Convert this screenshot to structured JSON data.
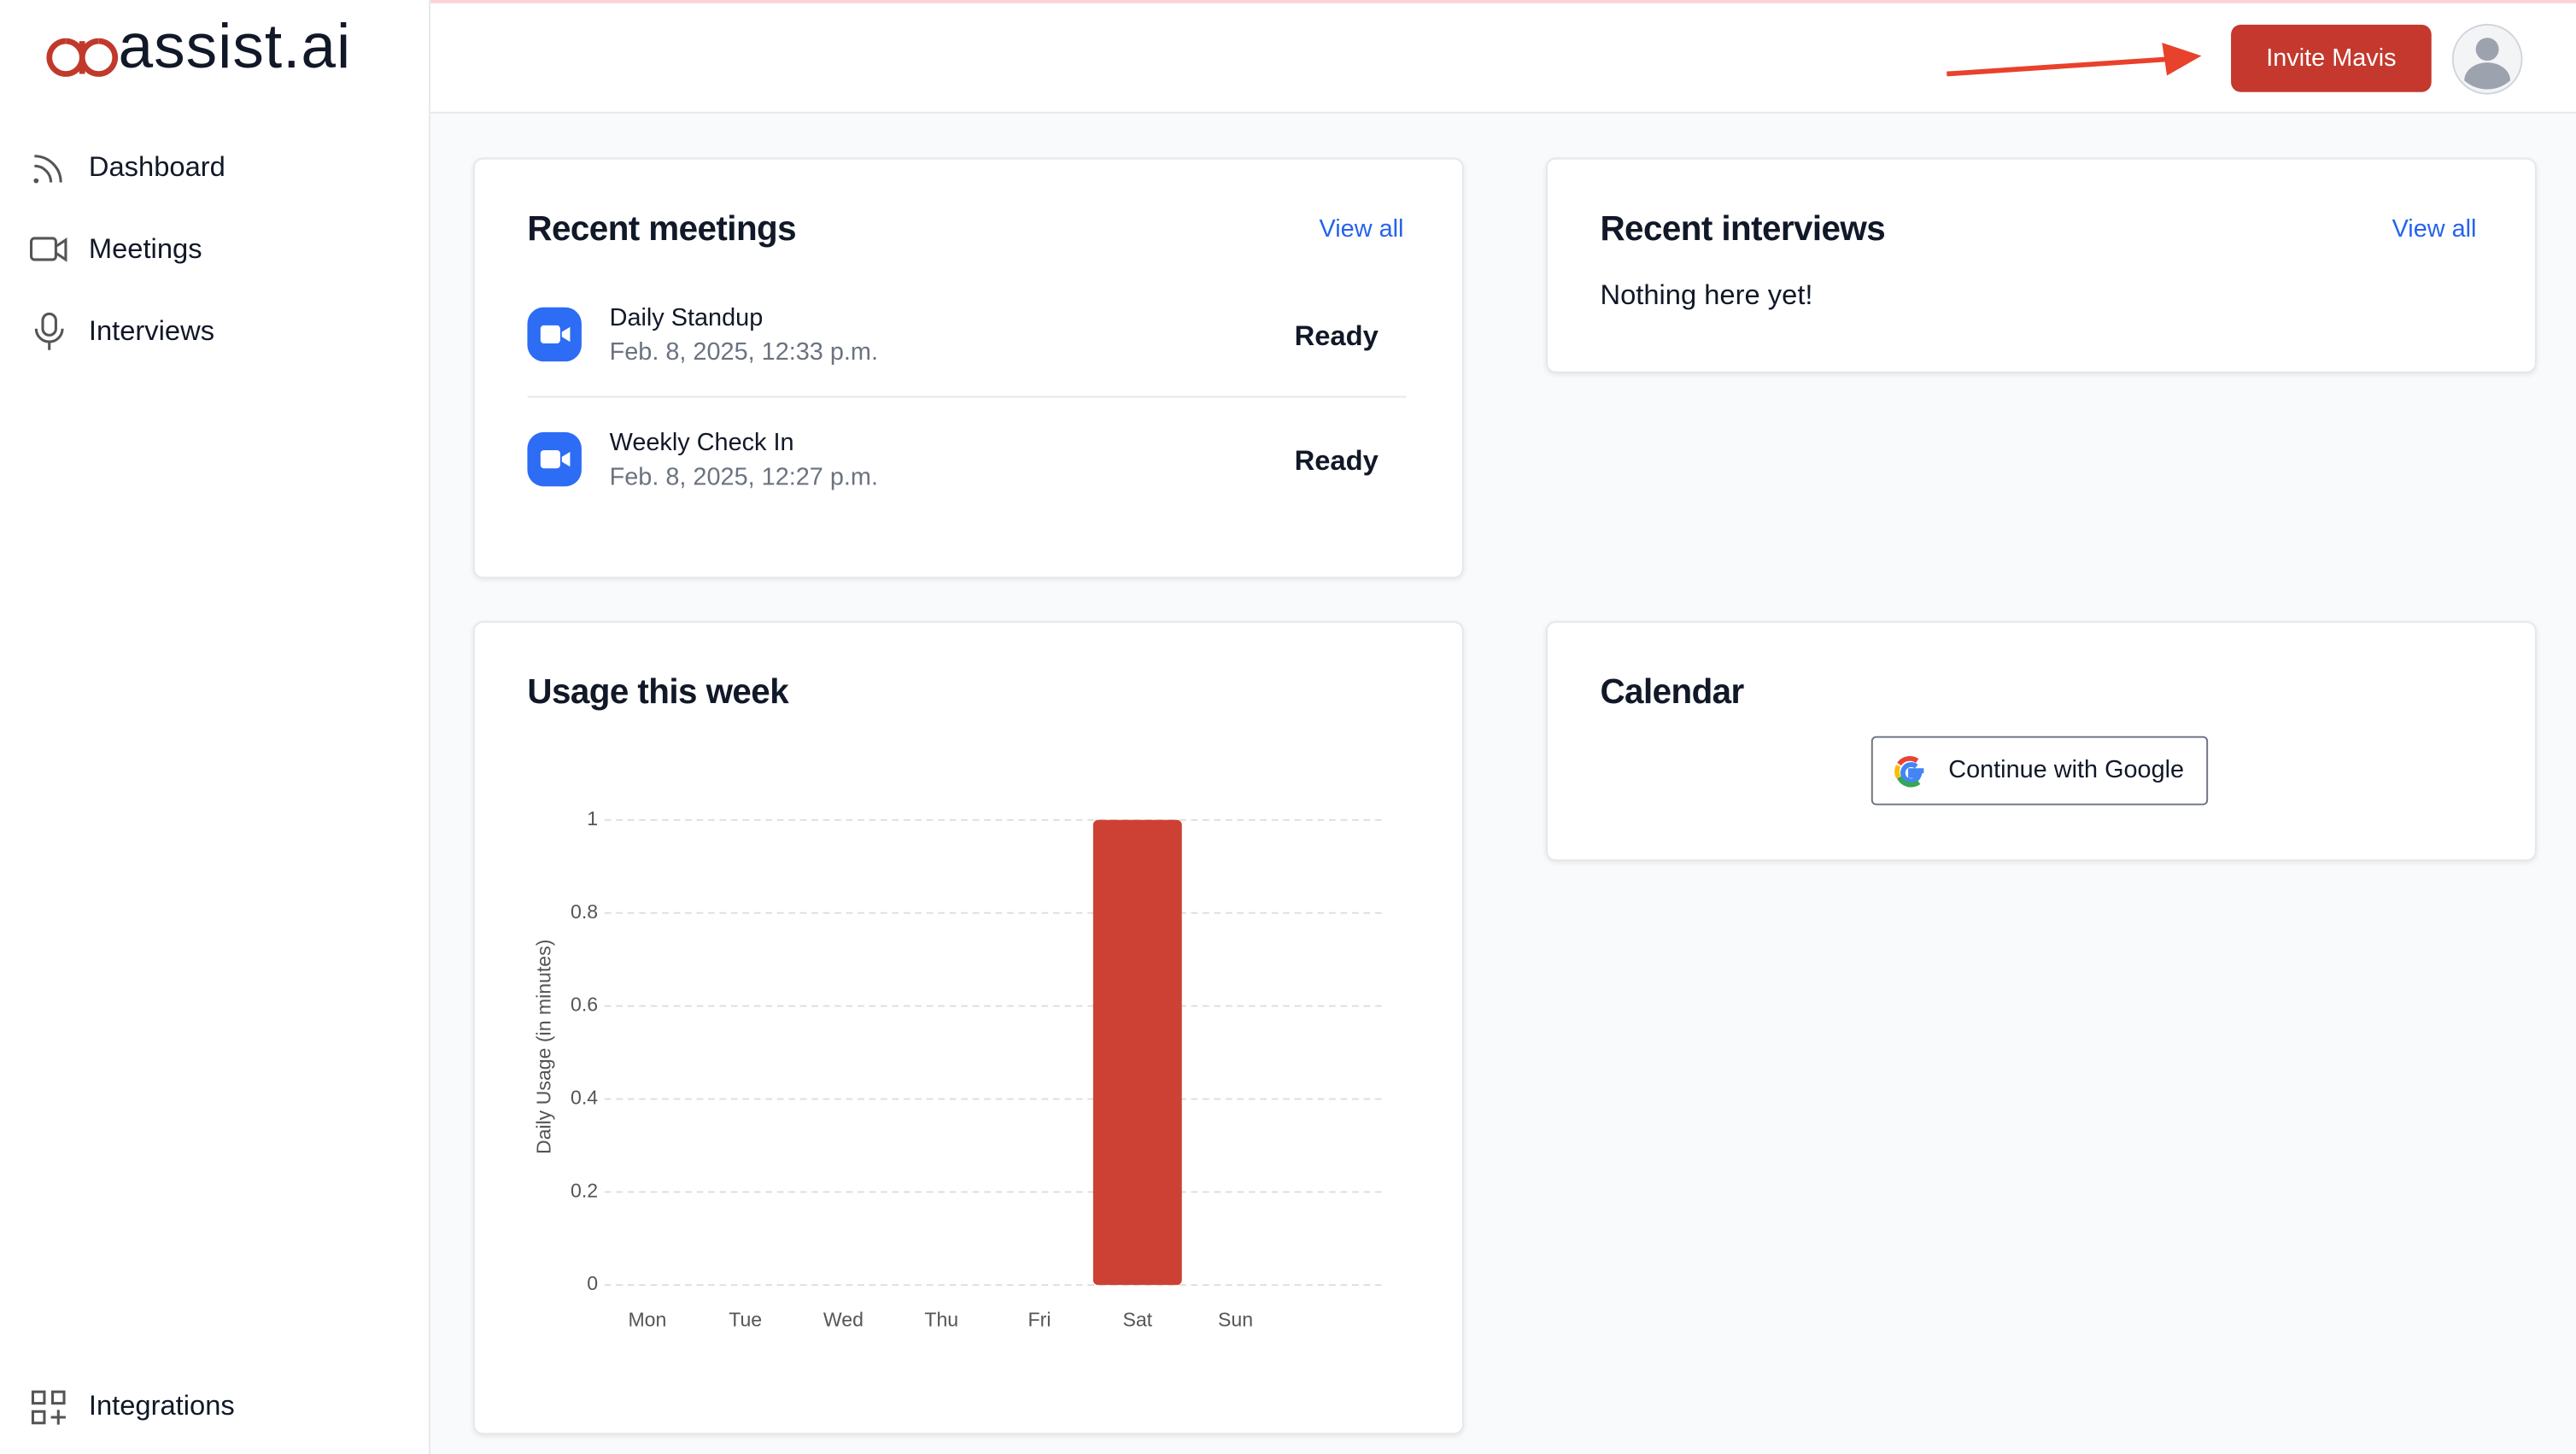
{
  "sidebar": {
    "logo": "assist.ai",
    "nav": [
      "Dashboard",
      "Meetings",
      "Interviews"
    ],
    "footer_nav": "Integrations"
  },
  "header": {
    "button": "Invite Mavis"
  },
  "recent_meetings": {
    "title": "Recent meetings",
    "link": "View all",
    "items": [
      {
        "title": "Daily Standup",
        "date": "Feb. 8, 2025, 12:33 p.m.",
        "status": "Ready"
      },
      {
        "title": "Weekly Check In",
        "date": "Feb. 8, 2025, 12:27 p.m.",
        "status": "Ready"
      }
    ]
  },
  "recent_interviews": {
    "title": "Recent interviews",
    "link": "View all",
    "empty": "Nothing here yet!"
  },
  "chart_data": {
    "type": "bar",
    "title": "Usage this week",
    "y_label": "Daily Usage (in minutes)",
    "categories": [
      "Mon",
      "Tue",
      "Wed",
      "Thu",
      "Fri",
      "Sat",
      "Sun"
    ],
    "values": [
      0,
      0,
      0,
      0,
      0,
      1,
      0
    ],
    "color": "#cc4133",
    "ylim": [
      0,
      1
    ],
    "yticks": [
      0,
      0.2,
      0.4,
      0.6,
      0.8,
      1
    ],
    "grid": true
  },
  "calendar": {
    "title": "Calendar",
    "button": "Continue with Google"
  }
}
